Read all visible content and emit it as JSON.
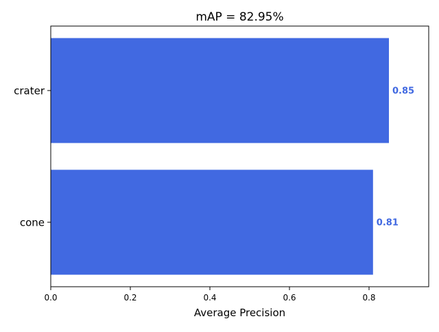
{
  "chart_data": {
    "type": "bar",
    "orientation": "horizontal",
    "title": "mAP = 82.95%",
    "xlabel": "Average Precision",
    "ylabel": "",
    "categories": [
      "crater",
      "cone"
    ],
    "values": [
      0.85,
      0.81
    ],
    "value_labels": [
      "0.85",
      "0.81"
    ],
    "xlim": [
      0,
      0.95
    ],
    "xticks": [
      0.0,
      0.2,
      0.4,
      0.6,
      0.8
    ],
    "xtick_labels": [
      "0.0",
      "0.2",
      "0.4",
      "0.6",
      "0.8"
    ],
    "grid": false,
    "legend": "none",
    "colors": {
      "bar": "#4169e1",
      "value_label": "#4169e1",
      "axis": "#000000",
      "background": "#ffffff"
    }
  }
}
